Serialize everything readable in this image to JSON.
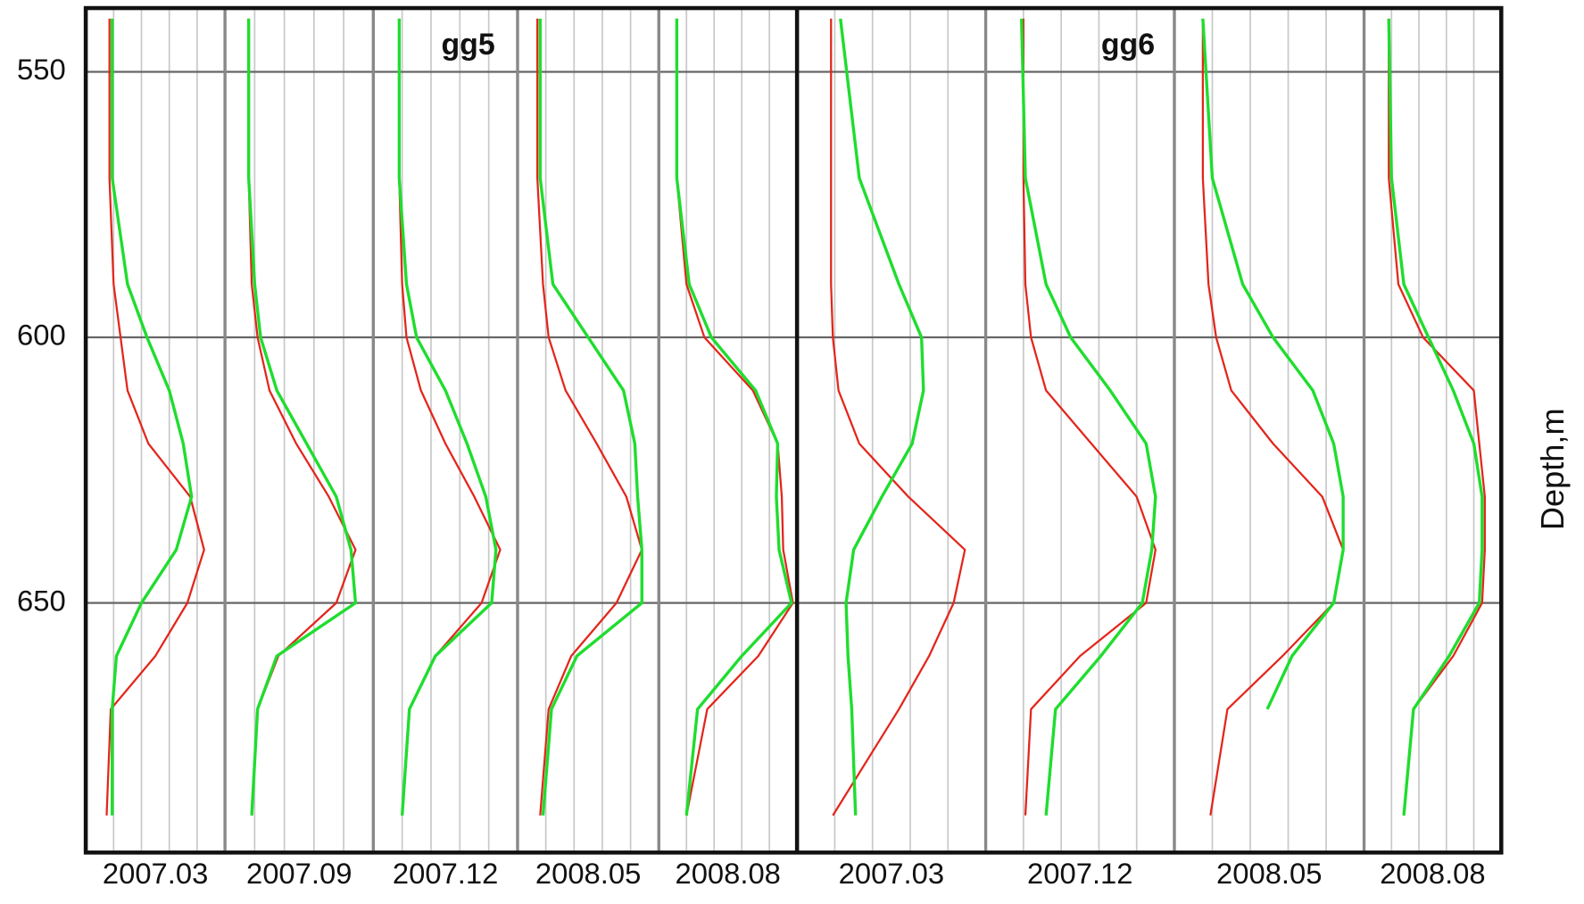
{
  "chart_data": {
    "type": "line",
    "y_label": "Depth,m",
    "ylim": [
      538,
      697
    ],
    "yticks": [
      550,
      600,
      650
    ],
    "xlim": [
      0,
      10
    ],
    "xticks": [
      2,
      4,
      6,
      8
    ],
    "grid": true,
    "depth": [
      540,
      570,
      590,
      600,
      610,
      620,
      630,
      640,
      650,
      660,
      670,
      690
    ],
    "panels": [
      {
        "title": "gg5",
        "tracks": [
          {
            "label": "2007.03",
            "series": [
              {
                "color": "#e3261c",
                "values": [
                  1.7,
                  1.7,
                  2.0,
                  2.5,
                  3.0,
                  4.5,
                  7.5,
                  8.5,
                  7.3,
                  5.0,
                  1.8,
                  1.5
                ]
              },
              {
                "color": "#1fdd2e",
                "values": [
                  1.9,
                  1.9,
                  3.0,
                  4.4,
                  6.0,
                  7.0,
                  7.6,
                  6.5,
                  4.0,
                  2.2,
                  1.9,
                  1.9
                ]
              }
            ]
          },
          {
            "label": "2007.09",
            "series": [
              {
                "color": "#e3261c",
                "values": [
                  1.6,
                  1.6,
                  1.8,
                  2.2,
                  3.0,
                  4.8,
                  7.0,
                  8.8,
                  7.5,
                  3.6,
                  2.2,
                  1.8
                ]
              },
              {
                "color": "#1fdd2e",
                "values": [
                  1.6,
                  1.6,
                  2.0,
                  2.4,
                  3.5,
                  5.5,
                  7.5,
                  8.5,
                  8.8,
                  3.5,
                  2.2,
                  1.8
                ]
              }
            ]
          },
          {
            "label": "2007.12",
            "series": [
              {
                "color": "#e3261c",
                "values": [
                  1.8,
                  1.8,
                  2.0,
                  2.3,
                  3.3,
                  5.0,
                  7.0,
                  8.8,
                  7.5,
                  4.3,
                  2.5,
                  2.0
                ]
              },
              {
                "color": "#1fdd2e",
                "values": [
                  1.8,
                  1.8,
                  2.3,
                  3.0,
                  5.0,
                  6.5,
                  7.8,
                  8.5,
                  8.2,
                  4.3,
                  2.5,
                  2.0
                ]
              }
            ]
          },
          {
            "label": "2008.05",
            "series": [
              {
                "color": "#e3261c",
                "values": [
                  1.4,
                  1.4,
                  1.8,
                  2.2,
                  3.4,
                  5.6,
                  7.7,
                  8.8,
                  7.0,
                  3.8,
                  2.2,
                  1.6
                ]
              },
              {
                "color": "#1fdd2e",
                "values": [
                  1.6,
                  1.6,
                  2.5,
                  5.0,
                  7.5,
                  8.3,
                  8.5,
                  8.8,
                  8.8,
                  4.2,
                  2.4,
                  1.8
                ]
              }
            ]
          },
          {
            "label": "2008.08",
            "series": [
              {
                "color": "#e3261c",
                "values": [
                  1.3,
                  1.3,
                  2.0,
                  3.3,
                  6.8,
                  8.6,
                  8.9,
                  9.0,
                  9.7,
                  7.2,
                  3.5,
                  2.0
                ]
              },
              {
                "color": "#1fdd2e",
                "values": [
                  1.3,
                  1.3,
                  2.2,
                  3.8,
                  7.0,
                  8.6,
                  8.5,
                  8.7,
                  9.6,
                  6.0,
                  2.8,
                  2.0
                ]
              }
            ]
          }
        ]
      },
      {
        "title": "gg6",
        "tracks": [
          {
            "label": "2007.03",
            "series": [
              {
                "color": "#e3261c",
                "values": [
                  1.8,
                  1.8,
                  1.8,
                  1.9,
                  2.2,
                  3.3,
                  5.9,
                  8.9,
                  8.3,
                  7.0,
                  5.4,
                  1.9
                ]
              },
              {
                "color": "#1fdd2e",
                "values": [
                  2.3,
                  3.3,
                  5.4,
                  6.6,
                  6.7,
                  6.1,
                  4.5,
                  3.0,
                  2.6,
                  2.7,
                  2.9,
                  3.1
                ]
              }
            ]
          },
          {
            "label": "2007.12",
            "series": [
              {
                "color": "#e3261c",
                "values": [
                  2.0,
                  2.0,
                  2.1,
                  2.4,
                  3.2,
                  5.6,
                  8.0,
                  9.0,
                  8.5,
                  5.0,
                  2.4,
                  2.1
                ]
              },
              {
                "color": "#1fdd2e",
                "values": [
                  1.9,
                  2.1,
                  3.2,
                  4.5,
                  6.6,
                  8.5,
                  9.0,
                  8.8,
                  8.3,
                  6.1,
                  3.7,
                  3.2
                ]
              }
            ]
          },
          {
            "label": "2008.05",
            "series": [
              {
                "color": "#e3261c",
                "values": [
                  1.5,
                  1.5,
                  1.8,
                  2.2,
                  3.0,
                  5.2,
                  7.8,
                  8.9,
                  8.4,
                  5.7,
                  2.8,
                  1.9
                ]
              },
              {
                "color": "#1fdd2e",
                "values": [
                  1.5,
                  2.0,
                  3.6,
                  5.2,
                  7.3,
                  8.4,
                  8.9,
                  8.9,
                  8.4,
                  6.2,
                  4.9,
                  null
                ]
              }
            ]
          },
          {
            "label": "2008.08",
            "series": [
              {
                "color": "#e3261c",
                "values": [
                  1.8,
                  1.8,
                  2.5,
                  4.3,
                  8.0,
                  8.4,
                  8.8,
                  8.8,
                  8.6,
                  6.5,
                  3.6,
                  2.9
                ]
              },
              {
                "color": "#1fdd2e",
                "values": [
                  1.8,
                  2.0,
                  2.9,
                  4.7,
                  6.5,
                  8.0,
                  8.6,
                  8.6,
                  8.4,
                  6.2,
                  3.6,
                  2.9
                ]
              }
            ]
          }
        ]
      }
    ]
  }
}
